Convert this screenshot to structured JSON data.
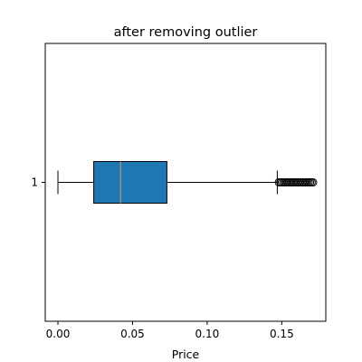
{
  "chart_data": {
    "type": "boxplot",
    "title": "after removing outlier",
    "xlabel": "Price",
    "ylabel": "",
    "orientation": "horizontal",
    "xlim": [
      -0.0085,
      0.1795
    ],
    "x_ticks": [
      0.0,
      0.05,
      0.1,
      0.15
    ],
    "x_tick_labels": [
      "0.00",
      "0.05",
      "0.10",
      "0.15"
    ],
    "y_tick_labels": [
      "1"
    ],
    "grid": false,
    "box": {
      "category": "1",
      "whisker_low": 0.0,
      "q1": 0.024,
      "median": 0.042,
      "q3": 0.073,
      "whisker_high": 0.147,
      "fliers": [
        0.148,
        0.149,
        0.15,
        0.151,
        0.152,
        0.153,
        0.154,
        0.155,
        0.156,
        0.157,
        0.158,
        0.159,
        0.16,
        0.161,
        0.162,
        0.163,
        0.164,
        0.165,
        0.166,
        0.167,
        0.168,
        0.169,
        0.17,
        0.171
      ]
    },
    "colors": {
      "box_fill": "#1f77b4",
      "median_line": "#ff7f0e",
      "lines": "#000000"
    }
  }
}
